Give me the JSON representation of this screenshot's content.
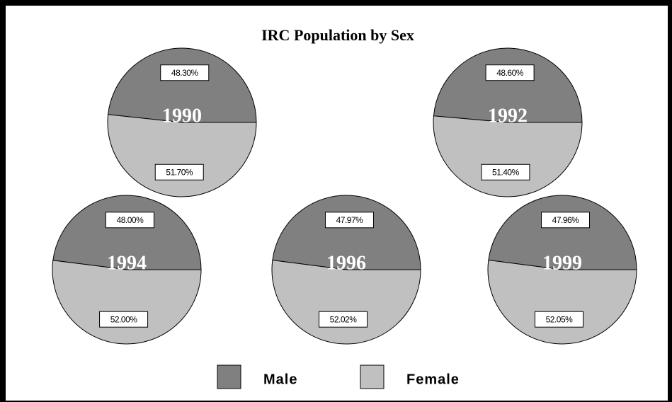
{
  "title": "IRC Population by Sex",
  "legend": {
    "categories": [
      "Male",
      "Female"
    ],
    "colors": [
      "#808080",
      "#c0c0c0"
    ]
  },
  "chart_data": [
    {
      "type": "pie",
      "title": "1990",
      "values": [
        48.3,
        51.7
      ],
      "value_labels": [
        "48.30%",
        "51.70%"
      ]
    },
    {
      "type": "pie",
      "title": "1992",
      "values": [
        48.6,
        51.4
      ],
      "value_labels": [
        "48.60%",
        "51.40%"
      ]
    },
    {
      "type": "pie",
      "title": "1994",
      "values": [
        48.0,
        52.0
      ],
      "value_labels": [
        "48.00%",
        "52.00%"
      ]
    },
    {
      "type": "pie",
      "title": "1996",
      "values": [
        47.97,
        52.02
      ],
      "value_labels": [
        "47.97%",
        "52.02%"
      ]
    },
    {
      "type": "pie",
      "title": "1999",
      "values": [
        47.96,
        52.05
      ],
      "value_labels": [
        "47.96%",
        "52.05%"
      ]
    }
  ]
}
